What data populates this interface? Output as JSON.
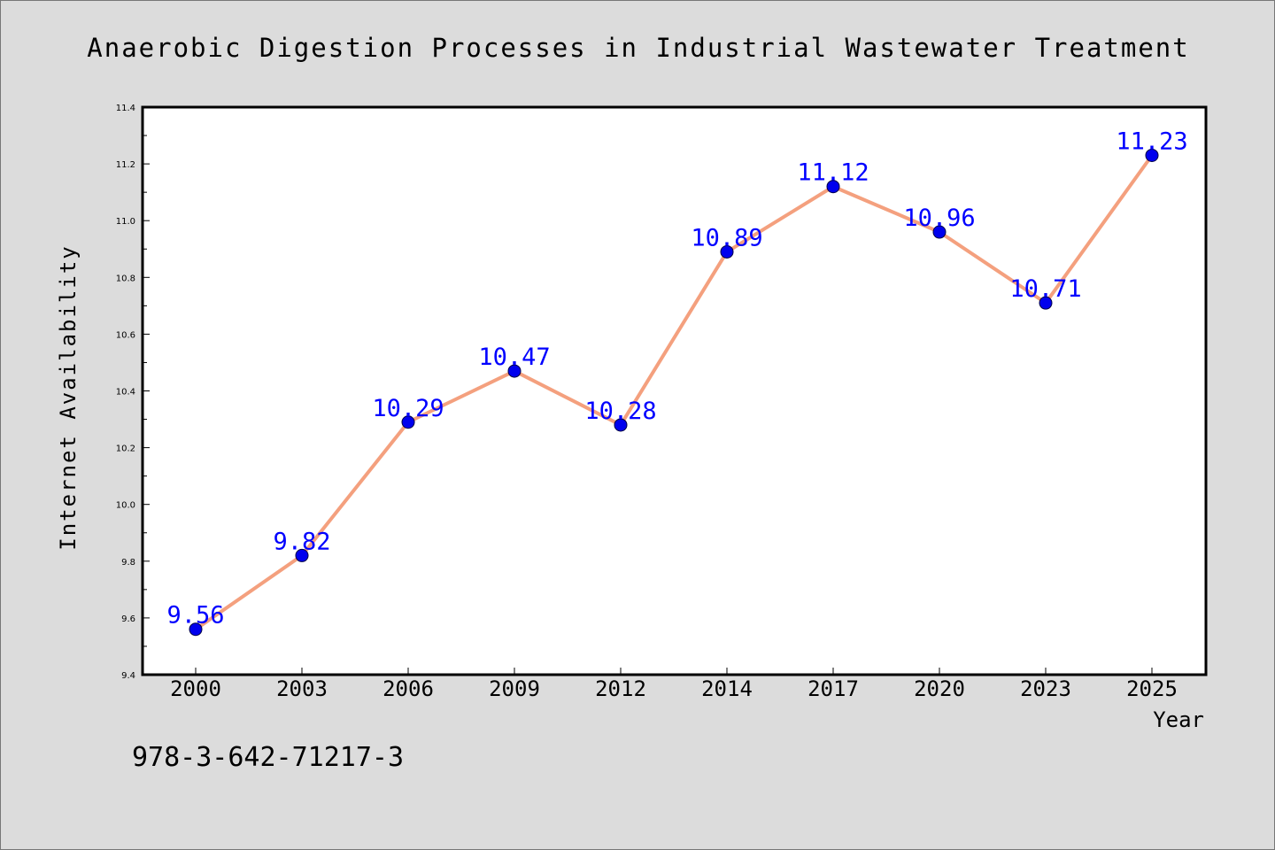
{
  "chart_data": {
    "type": "line",
    "title": "Anaerobic Digestion Processes in Industrial Wastewater Treatment",
    "xlabel": "Year",
    "ylabel": "Internet Availability",
    "categories": [
      "2000",
      "2003",
      "2006",
      "2009",
      "2012",
      "2014",
      "2017",
      "2020",
      "2023",
      "2025"
    ],
    "series": [
      {
        "values": [
          9.56,
          9.82,
          10.29,
          10.47,
          10.28,
          10.89,
          11.12,
          10.96,
          10.71,
          11.23
        ],
        "data_labels": [
          "9.56",
          "9.82",
          "10.29",
          "10.47",
          "10.28",
          "10.89",
          "11.12",
          "10.96",
          "10.71",
          "11.23"
        ],
        "line_color": "#f4a07e",
        "marker_color": "#0000ee"
      }
    ],
    "ylim": [
      9.4,
      11.4
    ],
    "yticks": [
      "9.4",
      "9.6",
      "9.8",
      "10.0",
      "10.2",
      "10.4",
      "10.6",
      "10.8",
      "11.0",
      "11.2",
      "11.4"
    ],
    "grid": false,
    "legend": "none",
    "label_color": "#0000ff"
  },
  "footer": {
    "isbn": "978-3-642-71217-3"
  }
}
